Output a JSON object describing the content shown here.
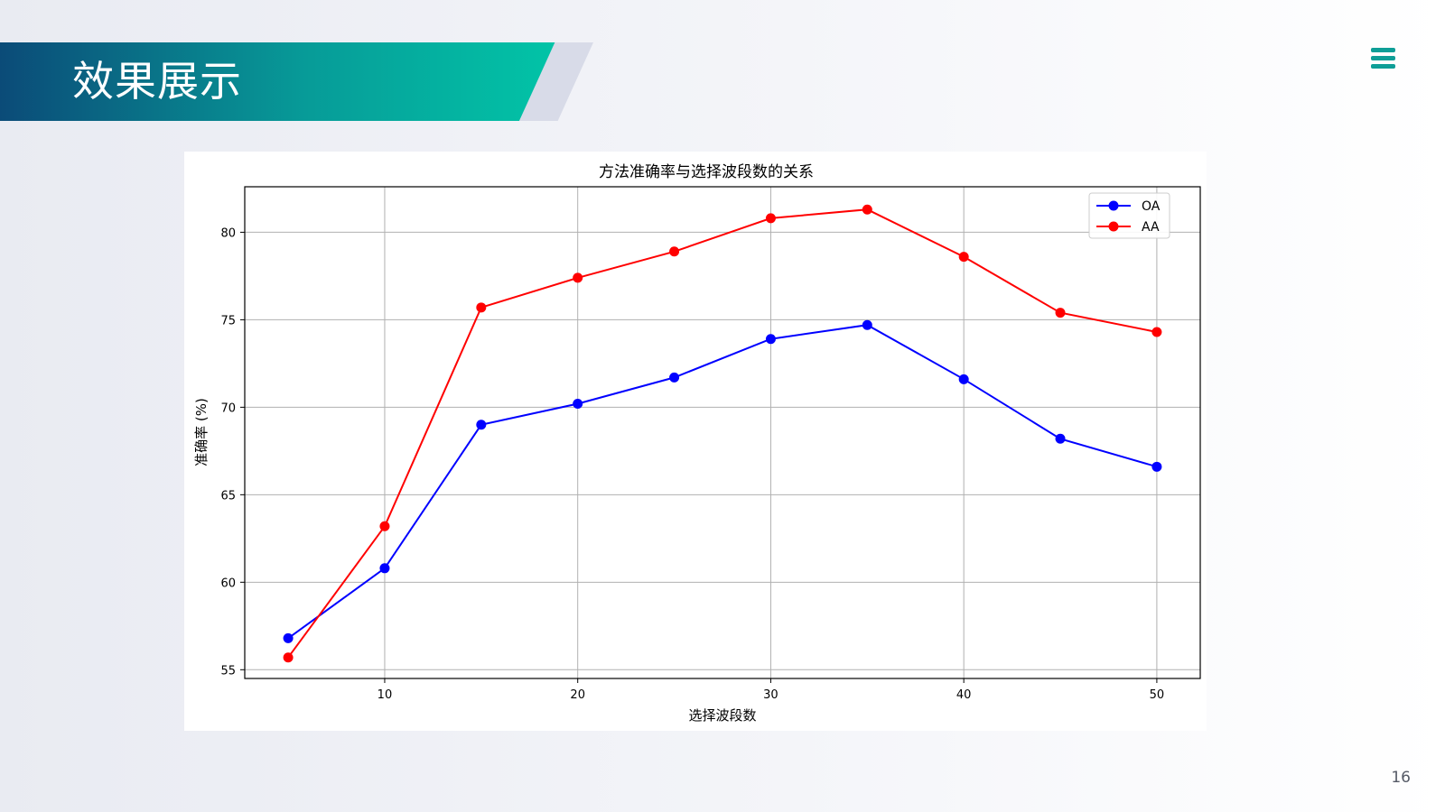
{
  "slide": {
    "title": "效果展示",
    "page_number": "16",
    "menu_icon": "hamburger-menu-icon",
    "accent_color": "#079b98"
  },
  "chart_data": {
    "type": "line",
    "title": "方法准确率与选择波段数的关系",
    "xlabel": "选择波段数",
    "ylabel": "准确率 (%)",
    "x": [
      5,
      10,
      15,
      20,
      25,
      30,
      35,
      40,
      45,
      50
    ],
    "xlim": [
      2.75,
      52.25
    ],
    "ylim": [
      54.5,
      82.6
    ],
    "xticks": [
      10,
      20,
      30,
      40,
      50
    ],
    "yticks": [
      55,
      60,
      65,
      70,
      75,
      80
    ],
    "grid": true,
    "legend_position": "top-right",
    "series": [
      {
        "name": "OA",
        "color": "#0000ff",
        "marker": "circle",
        "values": [
          56.8,
          60.8,
          69.0,
          70.2,
          71.7,
          73.9,
          74.7,
          71.6,
          68.2,
          66.6
        ]
      },
      {
        "name": "AA",
        "color": "#ff0000",
        "marker": "circle",
        "values": [
          55.7,
          63.2,
          75.7,
          77.4,
          78.9,
          80.8,
          81.3,
          78.6,
          75.4,
          74.3
        ]
      }
    ]
  }
}
